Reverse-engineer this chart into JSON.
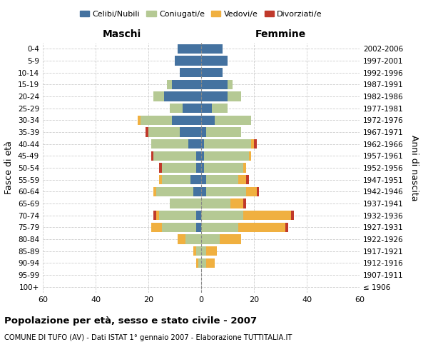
{
  "age_groups": [
    "100+",
    "95-99",
    "90-94",
    "85-89",
    "80-84",
    "75-79",
    "70-74",
    "65-69",
    "60-64",
    "55-59",
    "50-54",
    "45-49",
    "40-44",
    "35-39",
    "30-34",
    "25-29",
    "20-24",
    "15-19",
    "10-14",
    "5-9",
    "0-4"
  ],
  "birth_years": [
    "≤ 1906",
    "1907-1911",
    "1912-1916",
    "1917-1921",
    "1922-1926",
    "1927-1931",
    "1932-1936",
    "1937-1941",
    "1942-1946",
    "1947-1951",
    "1952-1956",
    "1957-1961",
    "1962-1966",
    "1967-1971",
    "1972-1976",
    "1977-1981",
    "1982-1986",
    "1987-1991",
    "1992-1996",
    "1997-2001",
    "2002-2006"
  ],
  "males": {
    "celibi": [
      0,
      0,
      0,
      0,
      0,
      2,
      2,
      0,
      3,
      4,
      2,
      2,
      5,
      8,
      11,
      7,
      14,
      11,
      8,
      10,
      9
    ],
    "coniugati": [
      0,
      0,
      1,
      2,
      6,
      13,
      14,
      12,
      14,
      11,
      13,
      16,
      14,
      12,
      12,
      5,
      4,
      2,
      0,
      0,
      0
    ],
    "vedovi": [
      0,
      0,
      1,
      1,
      3,
      4,
      1,
      0,
      1,
      1,
      0,
      0,
      0,
      0,
      1,
      0,
      0,
      0,
      0,
      0,
      0
    ],
    "divorziati": [
      0,
      0,
      0,
      0,
      0,
      0,
      1,
      0,
      0,
      0,
      1,
      1,
      0,
      1,
      0,
      0,
      0,
      0,
      0,
      0,
      0
    ]
  },
  "females": {
    "nubili": [
      0,
      0,
      0,
      0,
      0,
      0,
      0,
      0,
      2,
      2,
      1,
      1,
      1,
      2,
      5,
      4,
      10,
      10,
      8,
      10,
      8
    ],
    "coniugate": [
      0,
      0,
      2,
      2,
      7,
      14,
      16,
      11,
      15,
      12,
      15,
      17,
      18,
      13,
      14,
      6,
      5,
      2,
      0,
      0,
      0
    ],
    "vedove": [
      0,
      0,
      3,
      4,
      8,
      18,
      18,
      5,
      4,
      3,
      1,
      1,
      1,
      0,
      0,
      0,
      0,
      0,
      0,
      0,
      0
    ],
    "divorziate": [
      0,
      0,
      0,
      0,
      0,
      1,
      1,
      1,
      1,
      1,
      0,
      0,
      1,
      0,
      0,
      0,
      0,
      0,
      0,
      0,
      0
    ]
  },
  "colors": {
    "celibi": "#4472a0",
    "coniugati": "#b5c994",
    "vedovi": "#f0b040",
    "divorziati": "#c0392b"
  },
  "title": "Popolazione per età, sesso e stato civile - 2007",
  "subtitle": "COMUNE DI TUFO (AV) - Dati ISTAT 1° gennaio 2007 - Elaborazione TUTTITALIA.IT",
  "xlabel_left": "Maschi",
  "xlabel_right": "Femmine",
  "ylabel_left": "Fasce di età",
  "ylabel_right": "Anni di nascita",
  "xlim": 60,
  "bg_color": "#ffffff",
  "grid_color": "#cccccc"
}
